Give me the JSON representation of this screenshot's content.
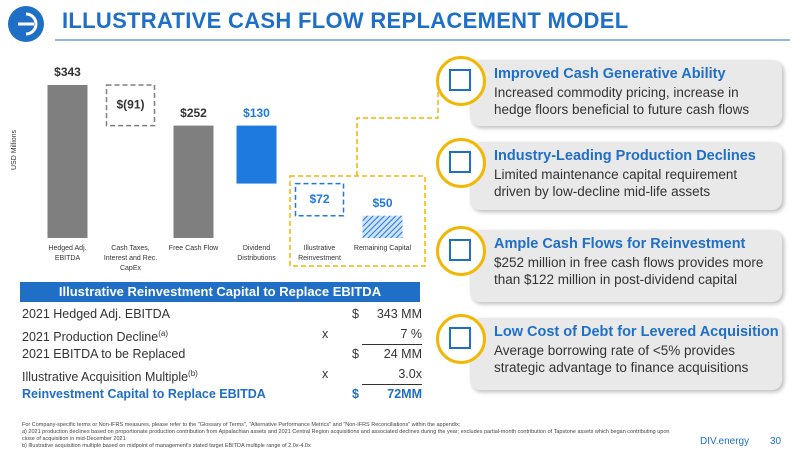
{
  "header": {
    "title": "ILLUSTRATIVE CASH FLOW REPLACEMENT MODEL"
  },
  "chart_data": {
    "type": "waterfall",
    "y_label": "USD Millions",
    "categories": [
      "Hedged Adj. EBITDA",
      "Cash Taxes, Interest and Rec. CapEx",
      "Free Cash Flow",
      "Dividend Distributions",
      "Illustrative Reinvestment",
      "Remaining Capital"
    ],
    "values": [
      343,
      -91,
      252,
      130,
      72,
      50
    ],
    "value_labels": [
      "$343",
      "$(91)",
      "$252",
      "$130",
      "$72",
      "$50"
    ],
    "bar_kinds": [
      "total",
      "step",
      "total",
      "step",
      "step",
      "total"
    ],
    "bar_styles": [
      "solid",
      "dashed",
      "solid",
      "solid",
      "dashed",
      "hatched"
    ],
    "bar_colors": [
      "#7f7f7f",
      "#7f7f7f",
      "#7f7f7f",
      "#1f7ae0",
      "#1f7ae0",
      "#1f7ae0"
    ]
  },
  "table": {
    "title": "Illustrative Reinvestment Capital to Replace EBITDA",
    "rows": [
      {
        "label": "2021 Hedged Adj. EBITDA",
        "cur": "$",
        "value": "343 MM"
      },
      {
        "label": "2021 Production Decline",
        "sup": "(a)",
        "op": "x",
        "value": "7 %"
      },
      {
        "label": "2021 EBITDA to be Replaced",
        "cur": "$",
        "value": "24 MM"
      },
      {
        "label": "Illustrative Acquisition Multiple",
        "sup": "(b)",
        "op": "x",
        "value": "3.0x"
      },
      {
        "label": "Reinvestment Capital to Replace EBITDA",
        "cur": "$",
        "value": "72MM"
      }
    ]
  },
  "callouts": [
    {
      "title": "Improved Cash Generative Ability",
      "body": "Increased commodity pricing, increase in hedge floors beneficial to future cash flows"
    },
    {
      "title": "Industry-Leading Production Declines",
      "body": "Limited maintenance capital requirement driven by low-decline mid-life assets"
    },
    {
      "title": "Ample Cash Flows for Reinvestment",
      "body": "$252 million in free cash flows provides more than $122 million in post-dividend capital"
    },
    {
      "title": "Low Cost of Debt for Levered Acquisition",
      "body": "Average borrowing rate of <5% provides strategic advantage to finance acquisitions"
    }
  ],
  "footnotes": [
    "For Company-specific terms or Non-IFRS measures, please refer to the \"Glossary of Terms\", \"Alternative Performance Metrics\" and \"Non-IFRS Reconciliations\" within the appendix;",
    "a)  2021 production declines based on proportionate production contribution from Appalachian assets and 2021 Central Region acquisitions and associated declines during the year; excludes partial-month contribution of Tapstone assets which began contributing upon close of acquisition in mid-December 2021",
    "b)  Illustrative acquisition multiple based on midpoint of management's stated target EBITDA multiple range of 2.0x-4.0x"
  ],
  "footer": {
    "brand": "DIV.energy",
    "page": "30"
  }
}
